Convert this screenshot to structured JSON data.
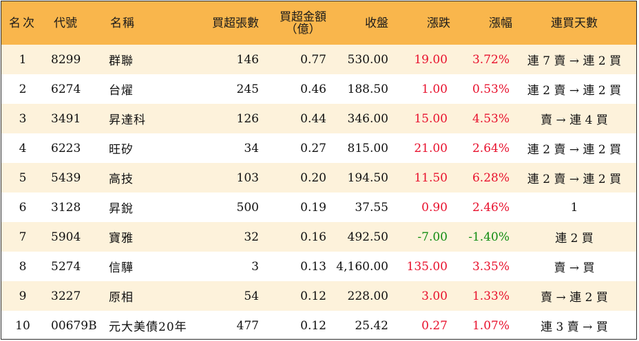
{
  "headers": {
    "rank": "名次",
    "code": "代號",
    "name": "名稱",
    "net_buy_lots": "買超張數",
    "net_buy_amount_line1": "買超金額",
    "net_buy_amount_line2": "（億）",
    "close": "收盤",
    "change": "漲跌",
    "change_pct": "漲幅",
    "streak": "連買天數"
  },
  "colors": {
    "header_bg": "#f9b64c",
    "stripe_bg": "#fdf2db",
    "up": "#e8112d",
    "down": "#118c11"
  },
  "rows": [
    {
      "rank": "1",
      "code": "8299",
      "name": "群聯",
      "lots": "146",
      "amount": "0.77",
      "close": "530.00",
      "change": "19.00",
      "pct": "3.72%",
      "dir": "up",
      "streak": "連 7 賣 → 連 2 買"
    },
    {
      "rank": "2",
      "code": "6274",
      "name": "台燿",
      "lots": "245",
      "amount": "0.46",
      "close": "188.50",
      "change": "1.00",
      "pct": "0.53%",
      "dir": "up",
      "streak": "連 2 賣 → 連 2 買"
    },
    {
      "rank": "3",
      "code": "3491",
      "name": "昇達科",
      "lots": "126",
      "amount": "0.44",
      "close": "346.00",
      "change": "15.00",
      "pct": "4.53%",
      "dir": "up",
      "streak": "賣 → 連 4 買"
    },
    {
      "rank": "4",
      "code": "6223",
      "name": "旺矽",
      "lots": "34",
      "amount": "0.27",
      "close": "815.00",
      "change": "21.00",
      "pct": "2.64%",
      "dir": "up",
      "streak": "連 2 賣 → 連 2 買"
    },
    {
      "rank": "5",
      "code": "5439",
      "name": "高技",
      "lots": "103",
      "amount": "0.20",
      "close": "194.50",
      "change": "11.50",
      "pct": "6.28%",
      "dir": "up",
      "streak": "連 2 賣 → 連 2 買"
    },
    {
      "rank": "6",
      "code": "3128",
      "name": "昇銳",
      "lots": "500",
      "amount": "0.19",
      "close": "37.55",
      "change": "0.90",
      "pct": "2.46%",
      "dir": "up",
      "streak": "1"
    },
    {
      "rank": "7",
      "code": "5904",
      "name": "寶雅",
      "lots": "32",
      "amount": "0.16",
      "close": "492.50",
      "change": "-7.00",
      "pct": "-1.40%",
      "dir": "down",
      "streak": "連 2 買"
    },
    {
      "rank": "8",
      "code": "5274",
      "name": "信驊",
      "lots": "3",
      "amount": "0.13",
      "close": "4,160.00",
      "change": "135.00",
      "pct": "3.35%",
      "dir": "up",
      "streak": "賣 → 買"
    },
    {
      "rank": "9",
      "code": "3227",
      "name": "原相",
      "lots": "54",
      "amount": "0.12",
      "close": "228.00",
      "change": "3.00",
      "pct": "1.33%",
      "dir": "up",
      "streak": "賣 → 連 2 買"
    },
    {
      "rank": "10",
      "code": "00679B",
      "name": "元大美債20年",
      "lots": "477",
      "amount": "0.12",
      "close": "25.42",
      "change": "0.27",
      "pct": "1.07%",
      "dir": "up",
      "streak": "連 3 賣 → 買"
    }
  ]
}
